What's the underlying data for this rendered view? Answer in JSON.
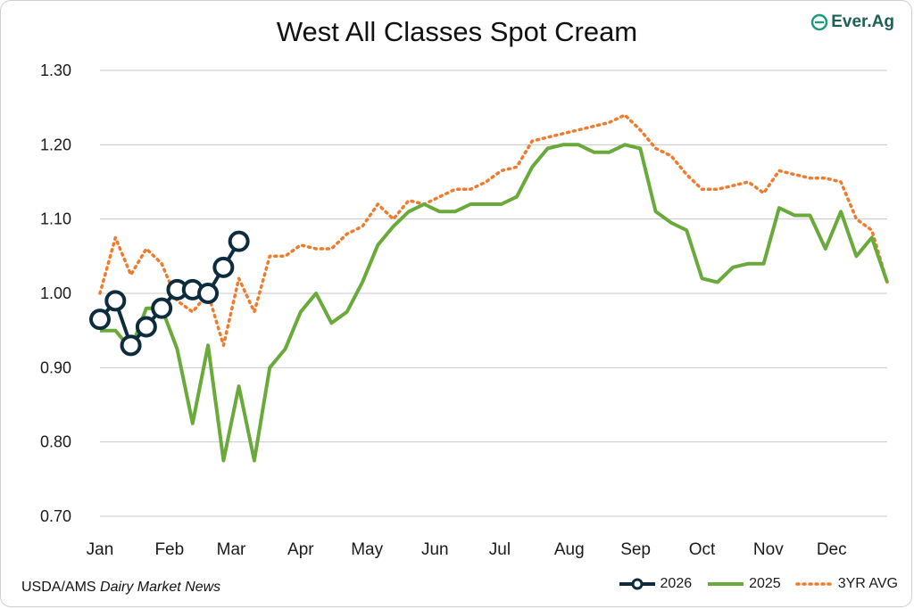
{
  "logo": {
    "text": "Ever.Ag"
  },
  "source": {
    "prefix": "USDA/AMS ",
    "italic": "Dairy Market News"
  },
  "chart_data": {
    "type": "line",
    "title": "West All Classes Spot Cream",
    "ylim": [
      0.7,
      1.3
    ],
    "yticks": [
      "0.70",
      "0.80",
      "0.90",
      "1.00",
      "1.10",
      "1.20",
      "1.30"
    ],
    "xlim": [
      1,
      52
    ],
    "month_labels": [
      "Jan",
      "Feb",
      "Mar",
      "Apr",
      "May",
      "Jun",
      "Jul",
      "Aug",
      "Sep",
      "Oct",
      "Nov",
      "Dec"
    ],
    "month_positions": [
      1,
      5.5,
      9.5,
      14,
      18.3,
      22.7,
      26.9,
      31.4,
      35.7,
      40,
      44.3,
      48.4
    ],
    "grid": "horizontal",
    "legend": "bottom-right",
    "colors": {
      "2026": "#0d2d3e",
      "2025": "#6aaa3a",
      "3YR AVG": "#f07b2d"
    },
    "series": [
      {
        "name": "2026",
        "x": [
          1,
          2,
          3,
          4,
          5,
          6,
          7,
          8,
          9,
          10
        ],
        "values": [
          0.965,
          0.99,
          0.93,
          0.955,
          0.98,
          1.005,
          1.005,
          1.0,
          1.035,
          1.07
        ]
      },
      {
        "name": "2025",
        "x": [
          1,
          2,
          3,
          4,
          5,
          6,
          7,
          8,
          9,
          10,
          11,
          12,
          13,
          14,
          15,
          16,
          17,
          18,
          19,
          20,
          21,
          22,
          23,
          24,
          25,
          26,
          27,
          28,
          29,
          30,
          31,
          32,
          33,
          34,
          35,
          36,
          37,
          38,
          39,
          40,
          41,
          42,
          43,
          44,
          45,
          46,
          47,
          48,
          49,
          50,
          51,
          52
        ],
        "values": [
          0.95,
          0.95,
          0.925,
          0.98,
          0.98,
          0.925,
          0.825,
          0.93,
          0.775,
          0.875,
          0.775,
          0.9,
          0.925,
          0.975,
          1.0,
          0.96,
          0.975,
          1.015,
          1.065,
          1.09,
          1.11,
          1.12,
          1.11,
          1.11,
          1.12,
          1.12,
          1.12,
          1.13,
          1.17,
          1.195,
          1.2,
          1.2,
          1.19,
          1.19,
          1.2,
          1.195,
          1.11,
          1.095,
          1.085,
          1.02,
          1.015,
          1.035,
          1.04,
          1.04,
          1.115,
          1.105,
          1.105,
          1.06,
          1.11,
          1.05,
          1.075,
          1.015
        ]
      },
      {
        "name": "3YR AVG",
        "x": [
          1,
          2,
          3,
          4,
          5,
          6,
          7,
          8,
          9,
          10,
          11,
          12,
          13,
          14,
          15,
          16,
          17,
          18,
          19,
          20,
          21,
          22,
          23,
          24,
          25,
          26,
          27,
          28,
          29,
          30,
          31,
          32,
          33,
          34,
          35,
          36,
          37,
          38,
          39,
          40,
          41,
          42,
          43,
          44,
          45,
          46,
          47,
          48,
          49,
          50,
          51,
          52
        ],
        "values": [
          1.0,
          1.075,
          1.025,
          1.06,
          1.04,
          0.99,
          0.975,
          1.0,
          0.93,
          1.02,
          0.975,
          1.05,
          1.05,
          1.065,
          1.06,
          1.06,
          1.08,
          1.09,
          1.12,
          1.1,
          1.125,
          1.12,
          1.13,
          1.14,
          1.14,
          1.15,
          1.165,
          1.17,
          1.205,
          1.21,
          1.215,
          1.22,
          1.225,
          1.23,
          1.24,
          1.22,
          1.195,
          1.185,
          1.16,
          1.14,
          1.14,
          1.145,
          1.15,
          1.135,
          1.165,
          1.16,
          1.155,
          1.155,
          1.15,
          1.1,
          1.085,
          1.015
        ]
      }
    ]
  }
}
